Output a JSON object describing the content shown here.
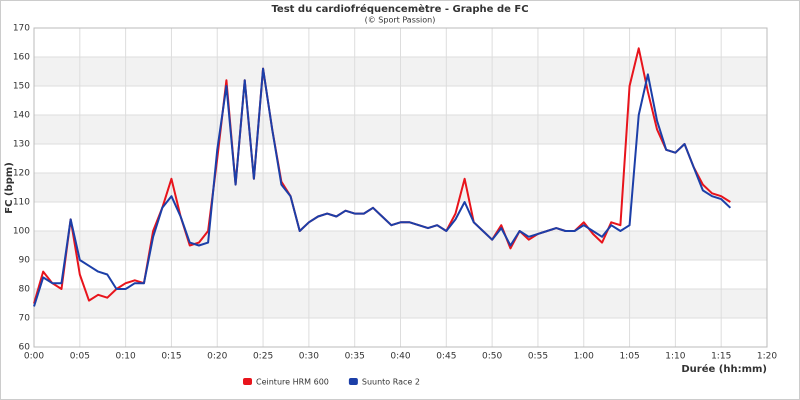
{
  "chart_data": {
    "type": "line",
    "title": "Test du cardiofréquencemètre - Graphe de FC",
    "subtitle": "(© Sport Passion)",
    "y_label": "FC (bpm)",
    "x_label": "Durée (hh:mm)",
    "x": [
      0,
      1,
      2,
      3,
      4,
      5,
      6,
      7,
      8,
      9,
      10,
      11,
      12,
      13,
      14,
      15,
      16,
      17,
      18,
      19,
      20,
      21,
      22,
      23,
      24,
      25,
      26,
      27,
      28,
      29,
      30,
      31,
      32,
      33,
      34,
      35,
      36,
      37,
      38,
      39,
      40,
      41,
      42,
      43,
      44,
      45,
      46,
      47,
      48,
      49,
      50,
      51,
      52,
      53,
      54,
      55,
      56,
      57,
      58,
      59,
      60,
      61,
      62,
      63,
      64,
      65,
      66,
      67,
      68,
      69,
      70,
      71,
      72,
      73,
      74,
      75,
      76
    ],
    "series": [
      {
        "name": "Ceinture HRM 600",
        "color": "#e8141c",
        "values": [
          75,
          86,
          82,
          80,
          104,
          85,
          76,
          78,
          77,
          80,
          82,
          83,
          82,
          100,
          108,
          118,
          105,
          95,
          96,
          100,
          125,
          152,
          116,
          152,
          118,
          156,
          135,
          117,
          112,
          100,
          103,
          105,
          106,
          105,
          107,
          106,
          106,
          108,
          105,
          102,
          103,
          103,
          102,
          101,
          102,
          100,
          106,
          118,
          103,
          100,
          97,
          102,
          94,
          100,
          97,
          99,
          100,
          101,
          100,
          100,
          103,
          99,
          96,
          103,
          102,
          150,
          163,
          148,
          135,
          128,
          127,
          130,
          122,
          116,
          113,
          112,
          110
        ]
      },
      {
        "name": "Suunto Race 2",
        "color": "#1c3fa8",
        "values": [
          74,
          84,
          82,
          82,
          104,
          90,
          88,
          86,
          85,
          80,
          80,
          82,
          82,
          98,
          108,
          112,
          105,
          96,
          95,
          96,
          128,
          150,
          116,
          152,
          118,
          156,
          135,
          116,
          112,
          100,
          103,
          105,
          106,
          105,
          107,
          106,
          106,
          108,
          105,
          102,
          103,
          103,
          102,
          101,
          102,
          100,
          104,
          110,
          103,
          100,
          97,
          101,
          95,
          100,
          98,
          99,
          100,
          101,
          100,
          100,
          102,
          100,
          98,
          102,
          100,
          102,
          140,
          154,
          138,
          128,
          127,
          130,
          122,
          114,
          112,
          111,
          108
        ]
      }
    ],
    "xlim": [
      0,
      80
    ],
    "xticks": [
      {
        "value": 0,
        "label": "0:00"
      },
      {
        "value": 5,
        "label": "0:05"
      },
      {
        "value": 10,
        "label": "0:10"
      },
      {
        "value": 15,
        "label": "0:15"
      },
      {
        "value": 20,
        "label": "0:20"
      },
      {
        "value": 25,
        "label": "0:25"
      },
      {
        "value": 30,
        "label": "0:30"
      },
      {
        "value": 35,
        "label": "0:35"
      },
      {
        "value": 40,
        "label": "0:40"
      },
      {
        "value": 45,
        "label": "0:45"
      },
      {
        "value": 50,
        "label": "0:50"
      },
      {
        "value": 55,
        "label": "0:55"
      },
      {
        "value": 60,
        "label": "1:00"
      },
      {
        "value": 65,
        "label": "1:05"
      },
      {
        "value": 70,
        "label": "1:10"
      },
      {
        "value": 75,
        "label": "1:15"
      },
      {
        "value": 80,
        "label": "1:20"
      }
    ],
    "ylim": [
      60,
      170
    ],
    "yticks": [
      60,
      70,
      80,
      90,
      100,
      110,
      120,
      130,
      140,
      150,
      160,
      170
    ],
    "grid": true
  }
}
